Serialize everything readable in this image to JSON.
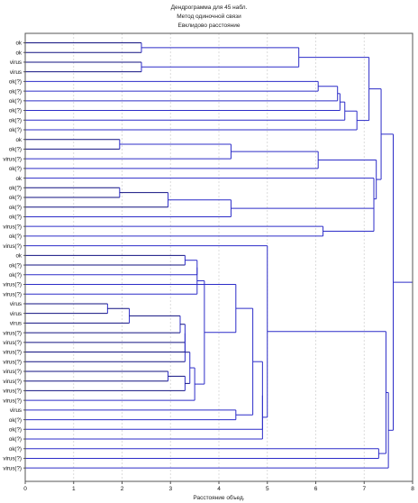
{
  "colors": {
    "link": "#2c2cc8",
    "link_dark": "#101080",
    "grid": "#d4d4d4",
    "frame": "#555555",
    "text": "#111111"
  },
  "chart_data": {
    "type": "dendrogram",
    "title": [
      "Дендрограмма для 45 набл.",
      "Метод одиночной связи",
      "Евклидово расстояние"
    ],
    "xlabel": "Расстояние объед.",
    "xlim": [
      0,
      8
    ],
    "xticks": [
      "0",
      "1",
      "2",
      "3",
      "4",
      "5",
      "6",
      "7",
      "8"
    ],
    "grid": true,
    "leaves": [
      "ok",
      "ok",
      "virus",
      "virus",
      "ok(?)",
      "ok(?)",
      "ok(?)",
      "ok(?)",
      "ok(?)",
      "ok(?)",
      "ok",
      "ok(?)",
      "virus(?)",
      "ok(?)",
      "ok",
      "ok(?)",
      "ok(?)",
      "ok(?)",
      "ok(?)",
      "virus(?)",
      "ok(?)",
      "virus(?)",
      "ok",
      "ok(?)",
      "ok(?)",
      "virus(?)",
      "virus(?)",
      "virus",
      "virus",
      "virus",
      "virus(?)",
      "virus(?)",
      "virus(?)",
      "virus(?)",
      "virus(?)",
      "virus(?)",
      "virus(?)",
      "virus(?)",
      "virus",
      "ok(?)",
      "ok(?)",
      "ok(?)",
      "ok(?)",
      "virus(?)",
      "virus(?)"
    ],
    "merges": [
      {
        "id": "A",
        "children": [
          0,
          1
        ],
        "height": 2.4
      },
      {
        "id": "B",
        "children": [
          2,
          3
        ],
        "height": 2.4
      },
      {
        "id": "C",
        "children": [
          "A",
          "B"
        ],
        "height": 5.65
      },
      {
        "id": "D",
        "children": [
          4,
          5
        ],
        "height": 6.05
      },
      {
        "id": "E",
        "children": [
          "D",
          6
        ],
        "height": 6.45
      },
      {
        "id": "F",
        "children": [
          "E",
          7
        ],
        "height": 6.5
      },
      {
        "id": "G",
        "children": [
          "F",
          8
        ],
        "height": 6.6
      },
      {
        "id": "H",
        "children": [
          "G",
          9
        ],
        "height": 6.85
      },
      {
        "id": "I",
        "children": [
          "C",
          "H"
        ],
        "height": 7.1
      },
      {
        "id": "J",
        "children": [
          10,
          11
        ],
        "height": 1.95
      },
      {
        "id": "K",
        "children": [
          "J",
          12
        ],
        "height": 4.25
      },
      {
        "id": "L",
        "children": [
          "K",
          13
        ],
        "height": 6.05
      },
      {
        "id": "M",
        "children": [
          15,
          16
        ],
        "height": 1.95
      },
      {
        "id": "N",
        "children": [
          "M",
          17
        ],
        "height": 2.95
      },
      {
        "id": "O",
        "children": [
          "N",
          18
        ],
        "height": 4.25
      },
      {
        "id": "P",
        "children": [
          19,
          20
        ],
        "height": 6.15
      },
      {
        "id": "Q",
        "children": [
          "O",
          "P"
        ],
        "height": 7.2
      },
      {
        "id": "R",
        "children": [
          14,
          "Q"
        ],
        "height": 7.2
      },
      {
        "id": "S",
        "children": [
          "L",
          "R"
        ],
        "height": 7.25
      },
      {
        "id": "T",
        "children": [
          "I",
          "S"
        ],
        "height": 7.35
      },
      {
        "id": "U",
        "children": [
          22,
          23
        ],
        "height": 3.3
      },
      {
        "id": "V",
        "children": [
          "U",
          24
        ],
        "height": 3.55
      },
      {
        "id": "W",
        "children": [
          27,
          28
        ],
        "height": 1.7
      },
      {
        "id": "X",
        "children": [
          "W",
          29
        ],
        "height": 2.15
      },
      {
        "id": "Y",
        "children": [
          "X",
          30
        ],
        "height": 3.2
      },
      {
        "id": "Z",
        "children": [
          "Y",
          31
        ],
        "height": 3.3
      },
      {
        "id": "AA",
        "children": [
          "Z",
          32
        ],
        "height": 3.3
      },
      {
        "id": "AB",
        "children": [
          34,
          35
        ],
        "height": 2.95
      },
      {
        "id": "AC",
        "children": [
          "AB",
          36
        ],
        "height": 3.3
      },
      {
        "id": "AD",
        "children": [
          "AA",
          33
        ],
        "height": 3.3
      },
      {
        "id": "AE",
        "children": [
          "AD",
          "AC"
        ],
        "height": 3.4
      },
      {
        "id": "AF",
        "children": [
          "AE",
          37
        ],
        "height": 3.5
      },
      {
        "id": "AG",
        "children": [
          "V",
          26
        ],
        "height": 3.55
      },
      {
        "id": "AH",
        "children": [
          "AG",
          "AF"
        ],
        "height": 3.7
      },
      {
        "id": "AI",
        "children": [
          25,
          "AH"
        ],
        "height": 4.35
      },
      {
        "id": "AJ",
        "children": [
          38,
          39
        ],
        "height": 4.35
      },
      {
        "id": "AK",
        "children": [
          "AI",
          "AJ"
        ],
        "height": 4.7
      },
      {
        "id": "AL",
        "children": [
          "AK",
          40
        ],
        "height": 4.9
      },
      {
        "id": "AM",
        "children": [
          "AL",
          41
        ],
        "height": 4.9
      },
      {
        "id": "AN",
        "children": [
          21,
          "AM"
        ],
        "height": 5.0
      },
      {
        "id": "AO",
        "children": [
          42,
          43
        ],
        "height": 7.3
      },
      {
        "id": "AP",
        "children": [
          "AN",
          "AO"
        ],
        "height": 7.45
      },
      {
        "id": "AQ",
        "children": [
          "AP",
          44
        ],
        "height": 7.5
      },
      {
        "id": "AR",
        "children": [
          "T",
          "AQ"
        ],
        "height": 7.6
      }
    ]
  }
}
